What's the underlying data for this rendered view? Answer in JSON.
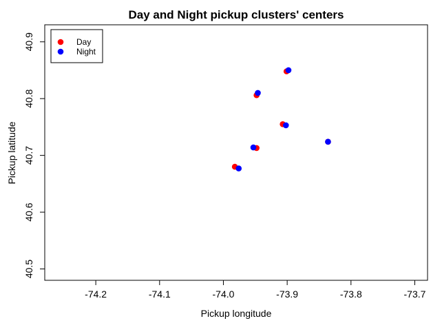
{
  "chart_data": {
    "type": "scatter",
    "title": "Day and Night pickup clusters' centers",
    "xlabel": "Pickup longitude",
    "ylabel": "Pickup latitude",
    "xlim": [
      -74.28,
      -73.68
    ],
    "ylim": [
      40.48,
      40.93
    ],
    "x_ticks": [
      -74.2,
      -74.1,
      -74.0,
      -73.9,
      -73.8,
      -73.7
    ],
    "x_tick_labels": [
      "-74.2",
      "-74.1",
      "-74.0",
      "-73.9",
      "-73.8",
      "-73.7"
    ],
    "y_ticks": [
      40.5,
      40.6,
      40.7,
      40.8,
      40.9
    ],
    "y_tick_labels": [
      "40.5",
      "40.6",
      "40.7",
      "40.8",
      "40.9"
    ],
    "grid": false,
    "legend_position": "top-left",
    "series": [
      {
        "name": "Day",
        "color": "#ff0000",
        "points": [
          {
            "x": -73.948,
            "y": 40.806
          },
          {
            "x": -73.901,
            "y": 40.848
          },
          {
            "x": -73.907,
            "y": 40.755
          },
          {
            "x": -73.948,
            "y": 40.713
          },
          {
            "x": -73.982,
            "y": 40.68
          },
          {
            "x": -73.836,
            "y": 40.724
          }
        ]
      },
      {
        "name": "Night",
        "color": "#0000ff",
        "points": [
          {
            "x": -73.946,
            "y": 40.81
          },
          {
            "x": -73.898,
            "y": 40.85
          },
          {
            "x": -73.902,
            "y": 40.753
          },
          {
            "x": -73.953,
            "y": 40.714
          },
          {
            "x": -73.976,
            "y": 40.677
          },
          {
            "x": -73.836,
            "y": 40.724
          }
        ]
      }
    ]
  }
}
